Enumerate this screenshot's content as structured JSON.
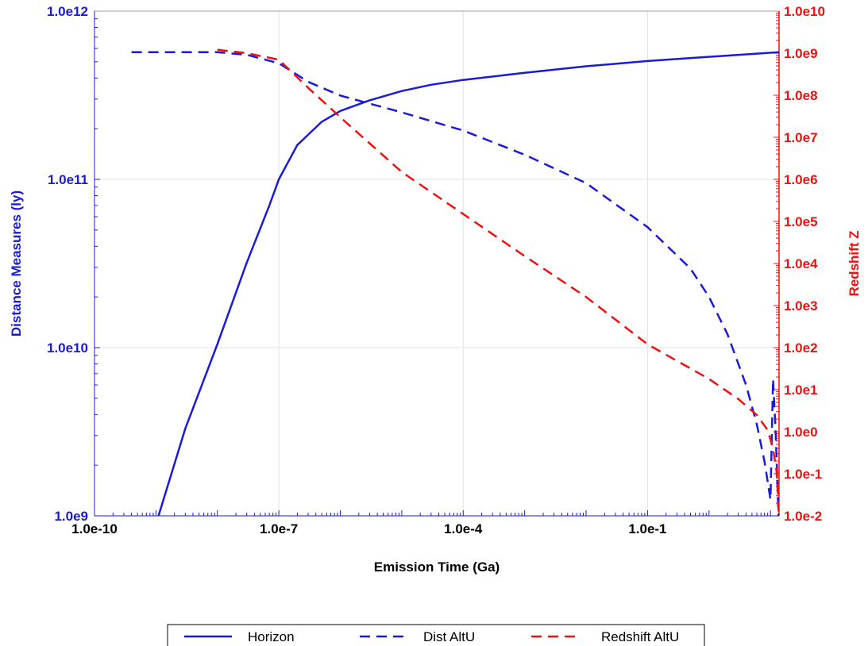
{
  "chart_data": {
    "type": "line",
    "xlabel": "Emission Time (Ga)",
    "ylabel_left": "Distance Measures (ly)",
    "ylabel_right": "Redshift Z",
    "x_scale": "log",
    "y_left_scale": "log",
    "y_right_scale": "log",
    "xlim": [
      1e-10,
      13.8
    ],
    "ylim_left": [
      1000000000.0,
      1000000000000.0
    ],
    "ylim_right": [
      0.01,
      10000000000.0
    ],
    "x_tick_labels": [
      "1.0e-10",
      "1.0e-7",
      "1.0e-4",
      "1.0e-1"
    ],
    "x_tick_values": [
      1e-10,
      1e-07,
      0.0001,
      0.1
    ],
    "y_left_tick_labels": [
      "1.0e9",
      "1.0e10",
      "1.0e11",
      "1.0e12"
    ],
    "y_left_tick_values": [
      1000000000.0,
      10000000000.0,
      100000000000.0,
      1000000000000.0
    ],
    "y_right_tick_labels": [
      "1.0e-2",
      "1.0e-1",
      "1.0e0",
      "1.0e1",
      "1.0e2",
      "1.0e3",
      "1.0e4",
      "1.0e5",
      "1.0e6",
      "1.0e7",
      "1.0e8",
      "1.0e9",
      "1.0e10"
    ],
    "y_right_tick_values": [
      0.01,
      0.1,
      1,
      10,
      100,
      1000,
      10000,
      100000,
      1000000,
      10000000,
      100000000,
      1000000000,
      10000000000
    ],
    "grid": true,
    "legend_position": "bottom",
    "colors": {
      "left_axis": "#1a1adc",
      "right_axis": "#ee1111",
      "horizon": "#1a1adc",
      "dist": "#1a1adc",
      "redshift": "#ee1111"
    },
    "series": [
      {
        "name": "Horizon",
        "axis": "left",
        "style": "solid",
        "color": "#1a1adc",
        "x": [
          1.1e-09,
          3e-09,
          1e-08,
          3e-08,
          7e-08,
          1e-07,
          2e-07,
          5e-07,
          1e-06,
          3e-06,
          1e-05,
          3e-05,
          0.0001,
          0.001,
          0.01,
          0.1,
          1,
          13.8
        ],
        "y": [
          1000000000.0,
          3300000000.0,
          10500000000.0,
          32000000000.0,
          70000000000.0,
          100000000000.0,
          160000000000.0,
          220000000000.0,
          255000000000.0,
          295000000000.0,
          335000000000.0,
          365000000000.0,
          390000000000.0,
          430000000000.0,
          470000000000.0,
          505000000000.0,
          535000000000.0,
          570000000000.0
        ]
      },
      {
        "name": "Dist AltU",
        "axis": "left",
        "style": "dashed",
        "color": "#1a1adc",
        "x": [
          4e-10,
          1e-09,
          1e-08,
          3e-08,
          1e-07,
          3e-07,
          1e-06,
          1e-05,
          0.0001,
          0.001,
          0.01,
          0.1,
          0.5,
          1,
          2,
          4,
          6,
          8,
          10,
          11,
          12,
          12.8,
          13.5
        ],
        "y": [
          570000000000.0,
          570000000000.0,
          570000000000.0,
          550000000000.0,
          490000000000.0,
          380000000000.0,
          315000000000.0,
          250000000000.0,
          195000000000.0,
          140000000000.0,
          95000000000.0,
          52000000000.0,
          29500000000.0,
          20000000000.0,
          12000000000.0,
          6000000000.0,
          3500000000.0,
          2100000000.0,
          1250000000.0,
          6500000000.0,
          3500000000.0,
          1800000000.0,
          1000000000.0
        ]
      },
      {
        "name": "Redshift AltU",
        "axis": "right",
        "style": "dashed",
        "color": "#ee1111",
        "x": [
          1e-08,
          3e-08,
          1e-07,
          3e-07,
          1e-06,
          1e-05,
          0.0001,
          0.001,
          0.01,
          0.1,
          1,
          3,
          6,
          9,
          11,
          12.5,
          13.3,
          13.6
        ],
        "y": [
          1200000000.0,
          1000000000.0,
          700000000.0,
          150000000.0,
          30000000.0,
          1500000.0,
          150000.0,
          15000.0,
          1600.0,
          120,
          18,
          6,
          2.5,
          1.1,
          0.4,
          0.12,
          0.03,
          0.01
        ]
      }
    ]
  }
}
